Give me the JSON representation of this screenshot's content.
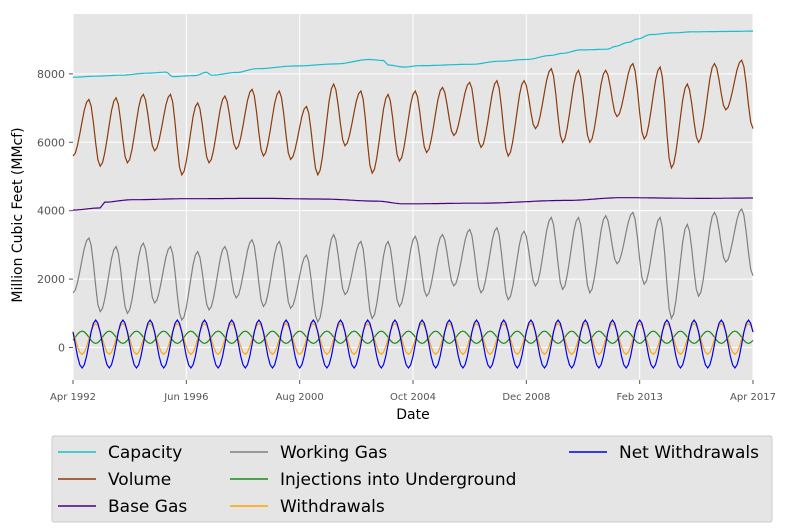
{
  "chart_data": {
    "type": "line",
    "title": "",
    "xlabel": "Date",
    "ylabel": "Million Cubic Feet (MMcf)",
    "x_range": [
      "1992-04",
      "2017-04"
    ],
    "x_ticks": [
      "Apr 1992",
      "Jun 1996",
      "Aug 2000",
      "Oct 2004",
      "Dec 2008",
      "Feb 2013",
      "Apr 2017"
    ],
    "ylim": [
      -950,
      9750
    ],
    "y_ticks": [
      "0",
      "2000",
      "4000",
      "6000",
      "8000"
    ],
    "grid": true,
    "legend_position": "bottom",
    "series": [
      {
        "name": "Capacity",
        "color": "#17becf",
        "points": [
          [
            "1992-04",
            7900
          ],
          [
            "1993-01",
            7930
          ],
          [
            "1994-01",
            7960
          ],
          [
            "1995-01",
            8020
          ],
          [
            "1995-09",
            8050
          ],
          [
            "1995-12",
            7920
          ],
          [
            "1996-10",
            7950
          ],
          [
            "1997-03",
            8050
          ],
          [
            "1997-05",
            7960
          ],
          [
            "1998-04",
            8040
          ],
          [
            "1999-01",
            8150
          ],
          [
            "2000-06",
            8230
          ],
          [
            "2001-12",
            8290
          ],
          [
            "2003-03",
            8420
          ],
          [
            "2003-09",
            8390
          ],
          [
            "2003-11",
            8260
          ],
          [
            "2004-06",
            8200
          ],
          [
            "2005-01",
            8240
          ],
          [
            "2006-12",
            8280
          ],
          [
            "2007-12",
            8370
          ],
          [
            "2008-12",
            8420
          ],
          [
            "2009-11",
            8540
          ],
          [
            "2010-04",
            8600
          ],
          [
            "2010-12",
            8700
          ],
          [
            "2011-12",
            8720
          ],
          [
            "2012-03",
            8800
          ],
          [
            "2012-09",
            8920
          ],
          [
            "2013-01",
            9020
          ],
          [
            "2013-07",
            9150
          ],
          [
            "2014-05",
            9200
          ],
          [
            "2015-02",
            9230
          ],
          [
            "2016-06",
            9240
          ],
          [
            "2017-04",
            9250
          ]
        ]
      },
      {
        "name": "Volume",
        "color": "#8c3b0c",
        "points": [
          [
            "1992-04",
            5600
          ],
          [
            "1992-11",
            7250
          ],
          [
            "1993-04",
            5300
          ],
          [
            "1993-11",
            7300
          ],
          [
            "1994-04",
            5400
          ],
          [
            "1994-11",
            7400
          ],
          [
            "1995-04",
            5750
          ],
          [
            "1995-11",
            7400
          ],
          [
            "1996-04",
            5050
          ],
          [
            "1996-11",
            7150
          ],
          [
            "1997-04",
            5400
          ],
          [
            "1997-11",
            7350
          ],
          [
            "1998-04",
            5800
          ],
          [
            "1998-11",
            7550
          ],
          [
            "1999-04",
            5600
          ],
          [
            "1999-11",
            7500
          ],
          [
            "2000-04",
            5500
          ],
          [
            "2000-11",
            7050
          ],
          [
            "2001-04",
            5050
          ],
          [
            "2001-11",
            7700
          ],
          [
            "2002-04",
            5900
          ],
          [
            "2002-11",
            7500
          ],
          [
            "2003-04",
            5100
          ],
          [
            "2003-11",
            7400
          ],
          [
            "2004-04",
            5450
          ],
          [
            "2004-11",
            7500
          ],
          [
            "2005-04",
            5700
          ],
          [
            "2005-11",
            7600
          ],
          [
            "2006-04",
            6200
          ],
          [
            "2006-11",
            7750
          ],
          [
            "2007-04",
            5850
          ],
          [
            "2007-11",
            7800
          ],
          [
            "2008-04",
            5600
          ],
          [
            "2008-11",
            7800
          ],
          [
            "2009-04",
            6400
          ],
          [
            "2009-11",
            8150
          ],
          [
            "2010-04",
            6000
          ],
          [
            "2010-11",
            8100
          ],
          [
            "2011-04",
            6000
          ],
          [
            "2011-11",
            8100
          ],
          [
            "2012-04",
            6750
          ],
          [
            "2012-11",
            8300
          ],
          [
            "2013-04",
            6100
          ],
          [
            "2013-11",
            8200
          ],
          [
            "2014-04",
            5250
          ],
          [
            "2014-11",
            7700
          ],
          [
            "2015-04",
            6000
          ],
          [
            "2015-11",
            8300
          ],
          [
            "2016-04",
            6950
          ],
          [
            "2016-11",
            8400
          ],
          [
            "2017-04",
            6400
          ]
        ]
      },
      {
        "name": "Base Gas",
        "color": "#4b0082",
        "points": [
          [
            "1992-04",
            4020
          ],
          [
            "1993-04",
            4080
          ],
          [
            "1993-06",
            4250
          ],
          [
            "1994-06",
            4320
          ],
          [
            "1996-06",
            4350
          ],
          [
            "1999-04",
            4360
          ],
          [
            "2001-06",
            4340
          ],
          [
            "2003-06",
            4280
          ],
          [
            "2004-06",
            4200
          ],
          [
            "2007-04",
            4220
          ],
          [
            "2010-06",
            4300
          ],
          [
            "2012-06",
            4380
          ],
          [
            "2015-06",
            4360
          ],
          [
            "2017-04",
            4370
          ]
        ]
      },
      {
        "name": "Working Gas",
        "color": "#808080",
        "points": [
          [
            "1992-04",
            1600
          ],
          [
            "1992-11",
            3200
          ],
          [
            "1993-04",
            1050
          ],
          [
            "1993-11",
            2950
          ],
          [
            "1994-04",
            1000
          ],
          [
            "1994-11",
            3050
          ],
          [
            "1995-04",
            1300
          ],
          [
            "1995-11",
            2950
          ],
          [
            "1996-04",
            800
          ],
          [
            "1996-11",
            2800
          ],
          [
            "1997-04",
            1100
          ],
          [
            "1997-11",
            2950
          ],
          [
            "1998-04",
            1450
          ],
          [
            "1998-11",
            3150
          ],
          [
            "1999-04",
            1200
          ],
          [
            "1999-11",
            3100
          ],
          [
            "2000-04",
            1150
          ],
          [
            "2000-11",
            2700
          ],
          [
            "2001-04",
            750
          ],
          [
            "2001-11",
            3300
          ],
          [
            "2002-04",
            1550
          ],
          [
            "2002-11",
            3100
          ],
          [
            "2003-04",
            850
          ],
          [
            "2003-11",
            3100
          ],
          [
            "2004-04",
            1200
          ],
          [
            "2004-11",
            3250
          ],
          [
            "2005-04",
            1500
          ],
          [
            "2005-11",
            3300
          ],
          [
            "2006-04",
            1800
          ],
          [
            "2006-11",
            3450
          ],
          [
            "2007-04",
            1600
          ],
          [
            "2007-11",
            3500
          ],
          [
            "2008-04",
            1400
          ],
          [
            "2008-11",
            3400
          ],
          [
            "2009-04",
            1800
          ],
          [
            "2009-11",
            3800
          ],
          [
            "2010-04",
            1700
          ],
          [
            "2010-11",
            3800
          ],
          [
            "2011-04",
            1600
          ],
          [
            "2011-11",
            3850
          ],
          [
            "2012-04",
            2450
          ],
          [
            "2012-11",
            3950
          ],
          [
            "2013-04",
            1850
          ],
          [
            "2013-11",
            3800
          ],
          [
            "2014-04",
            850
          ],
          [
            "2014-11",
            3600
          ],
          [
            "2015-04",
            1500
          ],
          [
            "2015-11",
            3950
          ],
          [
            "2016-04",
            2500
          ],
          [
            "2016-11",
            4050
          ],
          [
            "2017-04",
            2100
          ]
        ]
      },
      {
        "name": "Injections into Underground",
        "color": "#1a8c1a",
        "baseline": 300,
        "amplitude": 180,
        "phase_month": 7
      },
      {
        "name": "Withdrawals",
        "color": "#ffa500",
        "baseline": 250,
        "amplitude": 450,
        "phase_month": 1
      },
      {
        "name": "Net Withdrawals",
        "color": "#0000ee",
        "baseline": 100,
        "amplitude": 700,
        "phase_month": 1
      }
    ]
  }
}
